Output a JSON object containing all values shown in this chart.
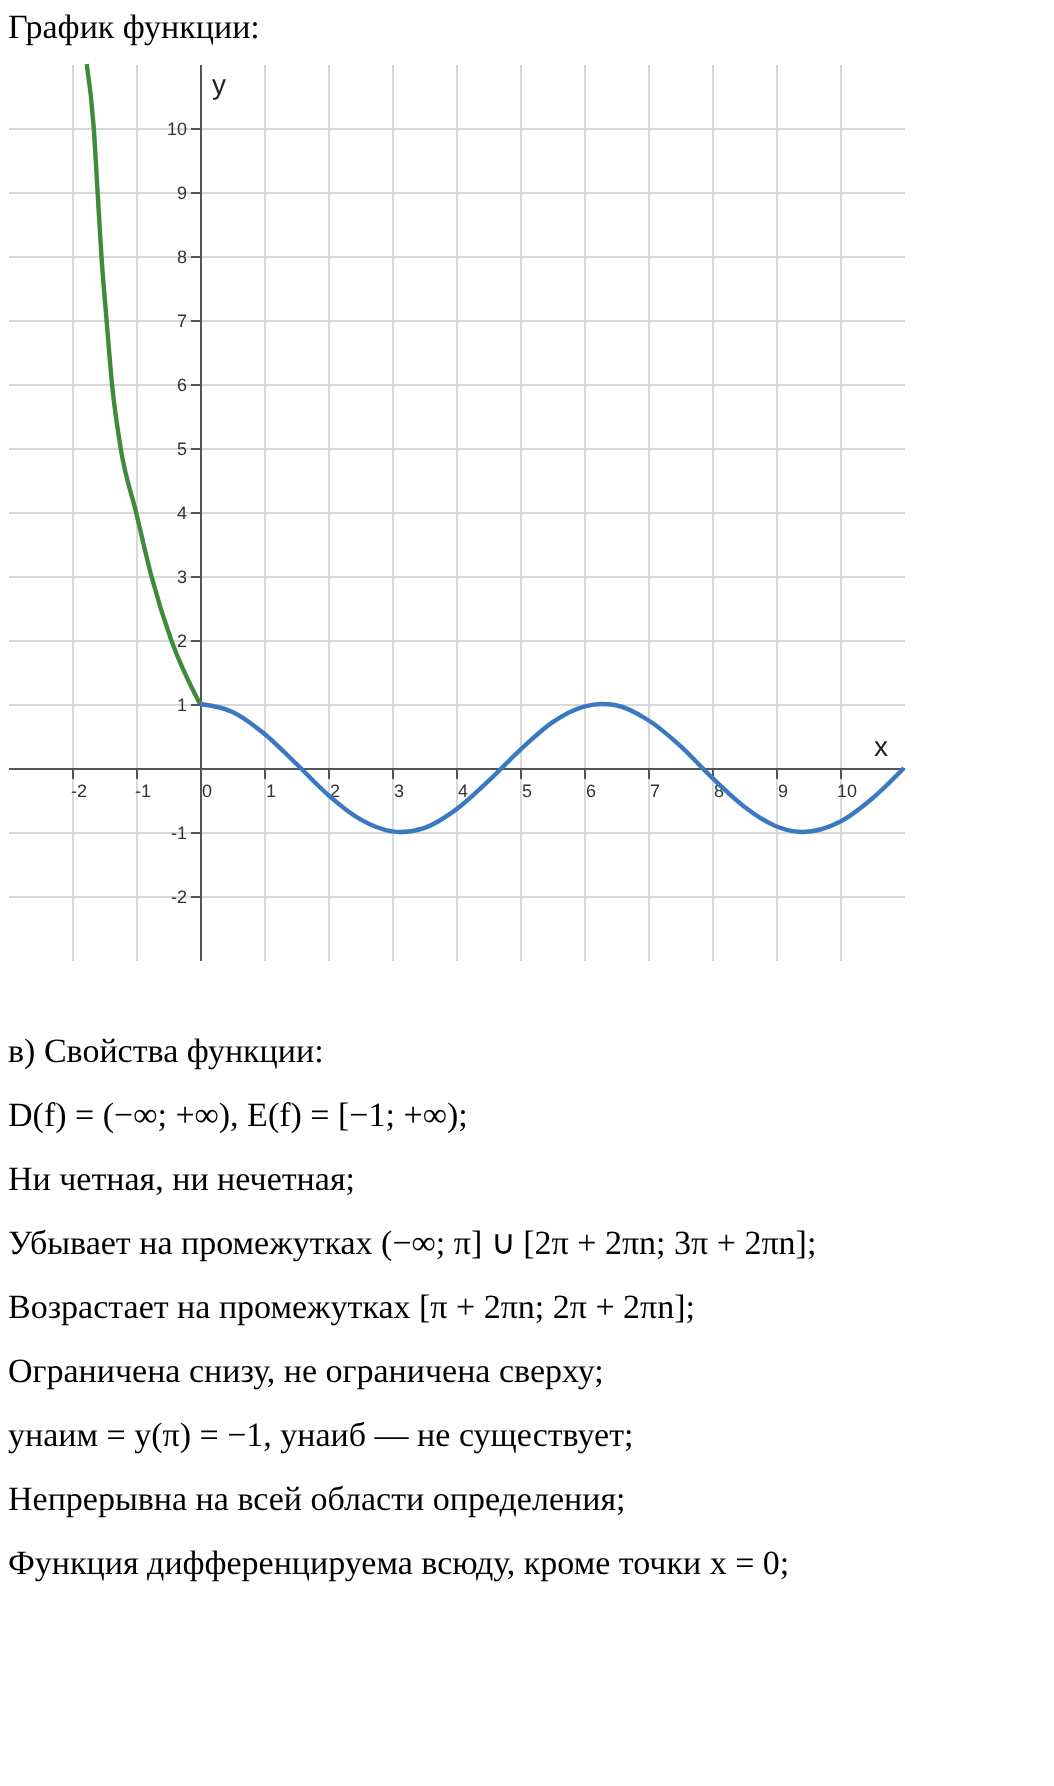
{
  "chart_data": {
    "type": "line",
    "title": "График функции:",
    "xlabel": "x",
    "ylabel": "y",
    "xlim": [
      -3,
      11
    ],
    "ylim": [
      -3,
      11
    ],
    "xticks": [
      -2,
      -1,
      0,
      1,
      2,
      3,
      4,
      5,
      6,
      7,
      8,
      9,
      10
    ],
    "yticks": [
      -2,
      -1,
      {
        "value": 0,
        "label": null
      },
      1,
      2,
      3,
      4,
      5,
      6,
      7,
      8,
      9,
      10
    ],
    "grid": true,
    "line_style": "solid",
    "series": [
      {
        "color": "#3f8b3c",
        "x": [
          -1.77,
          -1.66,
          -1.6,
          -1.54,
          -1.46,
          -1.375,
          -1.24,
          -1,
          -0.76,
          -0.45,
          0
        ],
        "values": [
          11,
          10,
          9,
          8,
          7,
          6,
          5,
          4,
          3,
          2,
          1
        ]
      },
      {
        "color": "#3a78c2",
        "x": [
          0,
          0.5,
          1,
          1.5,
          2,
          2.5,
          3,
          3.14,
          3.5,
          4,
          4.5,
          5,
          5.5,
          6,
          6.28,
          6.5,
          7,
          7.5,
          8,
          8.5,
          9,
          9.42,
          10,
          10.5,
          11
        ],
        "values": [
          1,
          0.88,
          0.54,
          0.07,
          -0.42,
          -0.8,
          -0.99,
          -1,
          -0.94,
          -0.65,
          -0.21,
          0.28,
          0.71,
          0.96,
          1,
          0.98,
          0.75,
          0.35,
          -0.15,
          -0.6,
          -0.91,
          -1,
          -0.84,
          -0.48,
          0
        ]
      }
    ],
    "annotations": [
      "в) Свойства функции:",
      "D(f) = (−∞; +∞),  E(f) = [−1; +∞);",
      "Ни четная, ни нечетная;",
      "Убывает на промежутках (−∞; π] ∪ [2π + 2πn; 3π + 2πn];",
      "Возрастает на промежутках [π + 2πn; 2π + 2πn];",
      "Ограничена снизу, не ограничена сверху;",
      "yнаим = y(π) = −1,  yнаиб — не существует;",
      "Непрерывна на всей области определения;",
      "Функция дифференцируема всюду, кроме точки x = 0;"
    ]
  }
}
